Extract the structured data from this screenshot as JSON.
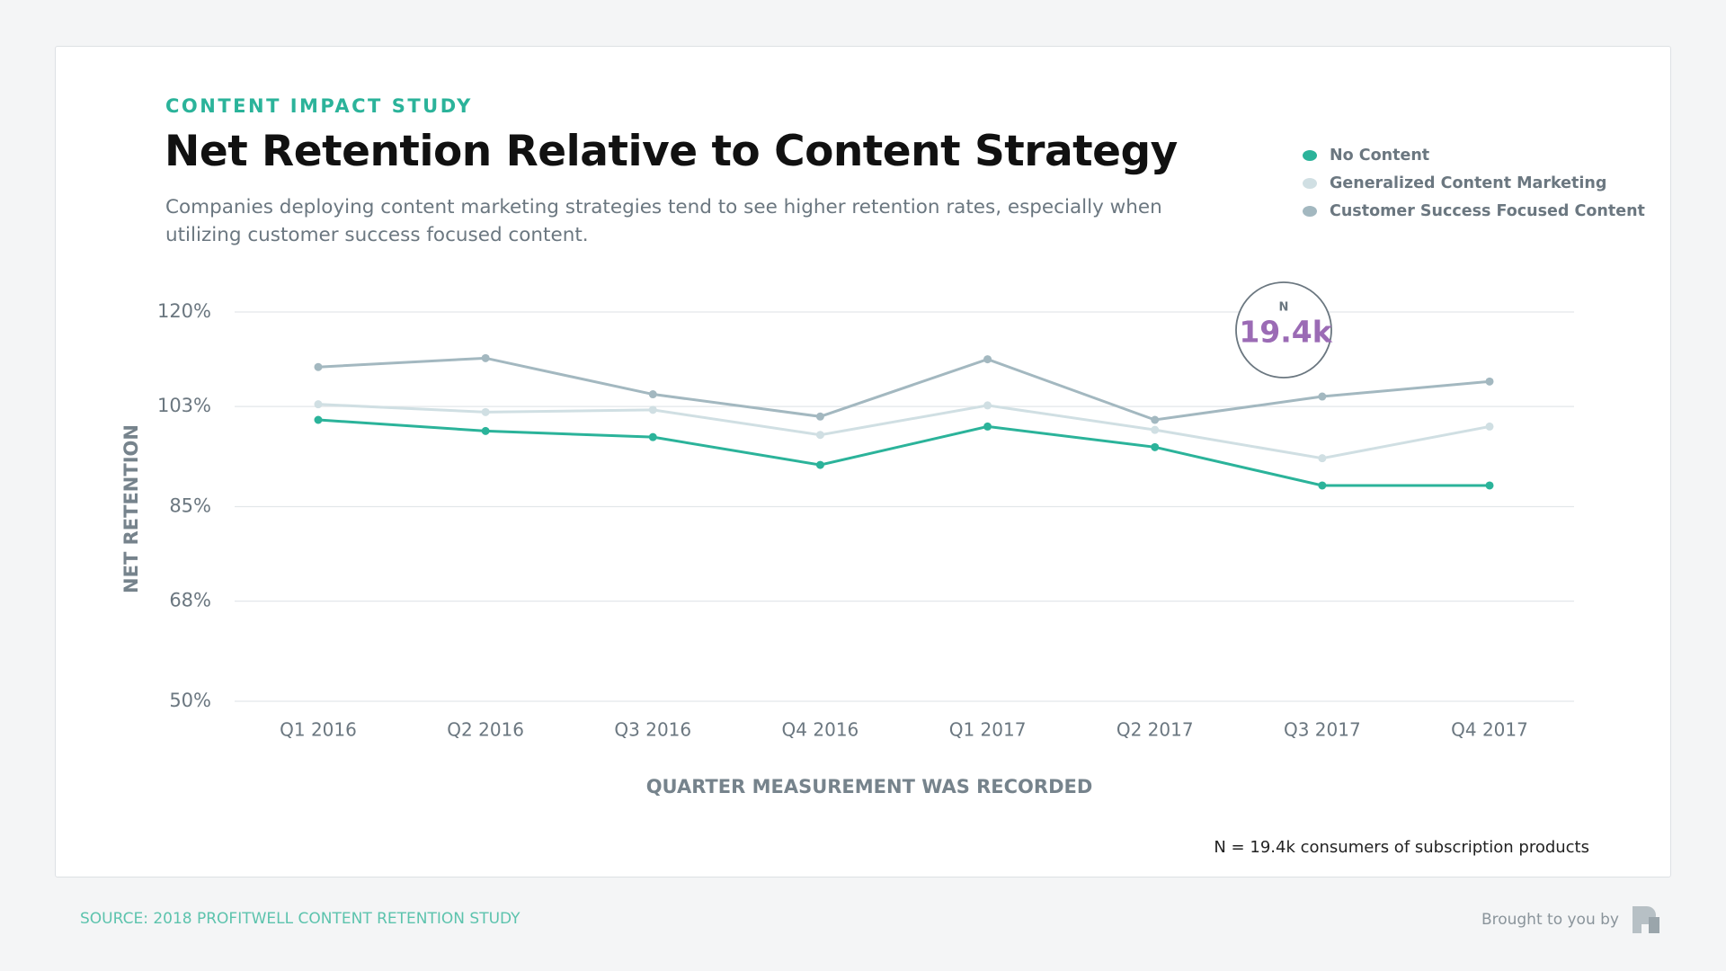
{
  "chart_data": {
    "type": "line",
    "kicker": "CONTENT IMPACT STUDY",
    "title": "Net Retention Relative to Content Strategy",
    "subtitle": "Companies deploying content marketing strategies tend to see higher retention rates, especially when utilizing customer success focused content.",
    "x_label": "QUARTER MEASUREMENT WAS RECORDED",
    "y_label": "NET RETENTION",
    "categories": [
      "Q1 2016",
      "Q2 2016",
      "Q3 2016",
      "Q4 2016",
      "Q1 2017",
      "Q2 2017",
      "Q3 2017",
      "Q4 2017"
    ],
    "series": [
      {
        "name": "No Content",
        "color": "#2bb39a",
        "values": [
          100.6,
          98.6,
          97.5,
          92.5,
          99.4,
          95.7,
          88.8,
          88.8
        ]
      },
      {
        "name": "Generalized Content Marketing",
        "color": "#d0dfe3",
        "values": [
          103.4,
          102.0,
          102.4,
          97.9,
          103.2,
          98.8,
          93.7,
          99.4
        ]
      },
      {
        "name": "Customer Success Focused Content",
        "color": "#a3b8c0",
        "values": [
          110.1,
          111.7,
          105.2,
          101.2,
          111.5,
          100.6,
          104.8,
          107.5
        ]
      }
    ],
    "ylim": [
      50,
      120
    ],
    "yticks": [
      {
        "value": 50,
        "label": "50%"
      },
      {
        "value": 68,
        "label": "68%"
      },
      {
        "value": 85,
        "label": "85%"
      },
      {
        "value": 103,
        "label": "103%"
      },
      {
        "value": 120,
        "label": "120%"
      }
    ],
    "grid": true,
    "legend": "top-right",
    "badge": {
      "label": "N",
      "value": "19.4k"
    },
    "note": "N = 19.4k consumers of subscription products",
    "source": "SOURCE: 2018 PROFITWELL CONTENT RETENTION STUDY",
    "credit": "Brought to you by"
  }
}
